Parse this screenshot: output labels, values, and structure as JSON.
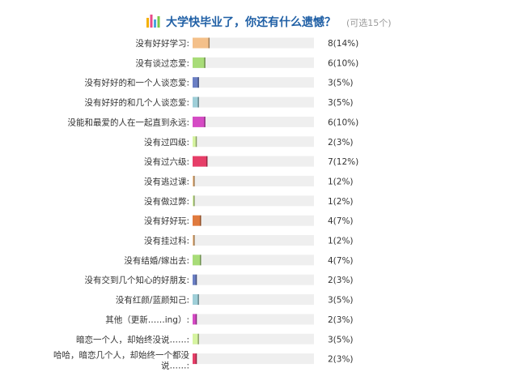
{
  "header": {
    "title": "大学快毕业了，你还有什么遗憾？",
    "hint": "(可选15个)",
    "icon": "bar-chart-icon"
  },
  "chart_data": {
    "type": "bar",
    "orientation": "horizontal",
    "title": "大学快毕业了，你还有什么遗憾？",
    "categories": [
      "没有好好学习:",
      "没有谈过恋爱:",
      "没有好好的和一个人谈恋爱:",
      "没有好好的和几个人谈恋爱:",
      "没能和最爱的人在一起直到永远:",
      "没有过四级:",
      "没有过六级:",
      "没有逃过课:",
      "没有做过弊:",
      "没有好好玩:",
      "没有挂过科:",
      "没有结婚/嫁出去:",
      "没有交到几个知心的好朋友:",
      "没有红颜/蓝颜知己:",
      "其他（更新……ing）:",
      "暗恋一个人，却始终没说……:",
      [
        "哈哈，暗恋几个人，却始终一个都没",
        "说……:"
      ]
    ],
    "values": [
      8,
      6,
      3,
      3,
      6,
      2,
      7,
      1,
      1,
      4,
      1,
      4,
      2,
      3,
      2,
      3,
      2
    ],
    "percents": [
      "14%",
      "10%",
      "5%",
      "5%",
      "10%",
      "3%",
      "12%",
      "2%",
      "2%",
      "7%",
      "2%",
      "7%",
      "3%",
      "5%",
      "3%",
      "5%",
      "3%"
    ],
    "value_labels": [
      "8(14%)",
      "6(10%)",
      "3(5%)",
      "3(5%)",
      "6(10%)",
      "2(3%)",
      "7(12%)",
      "1(2%)",
      "1(2%)",
      "4(7%)",
      "1(2%)",
      "4(7%)",
      "2(3%)",
      "3(5%)",
      "2(3%)",
      "3(5%)",
      "2(3%)"
    ],
    "colors": [
      "#f4c08a",
      "#a8dc78",
      "#6b7fc4",
      "#9fcfd8",
      "#d54bc4",
      "#d6f4a0",
      "#e63e68",
      "#f4c08a",
      "#d6f4a0",
      "#e07a3e",
      "#f4c08a",
      "#a8dc78",
      "#6b7fc4",
      "#9fcfd8",
      "#d54bc4",
      "#d6f4a0",
      "#e63e68"
    ],
    "track_color": "#efefef",
    "xlim": [
      0,
      57
    ],
    "grid": false,
    "legend": "none"
  }
}
